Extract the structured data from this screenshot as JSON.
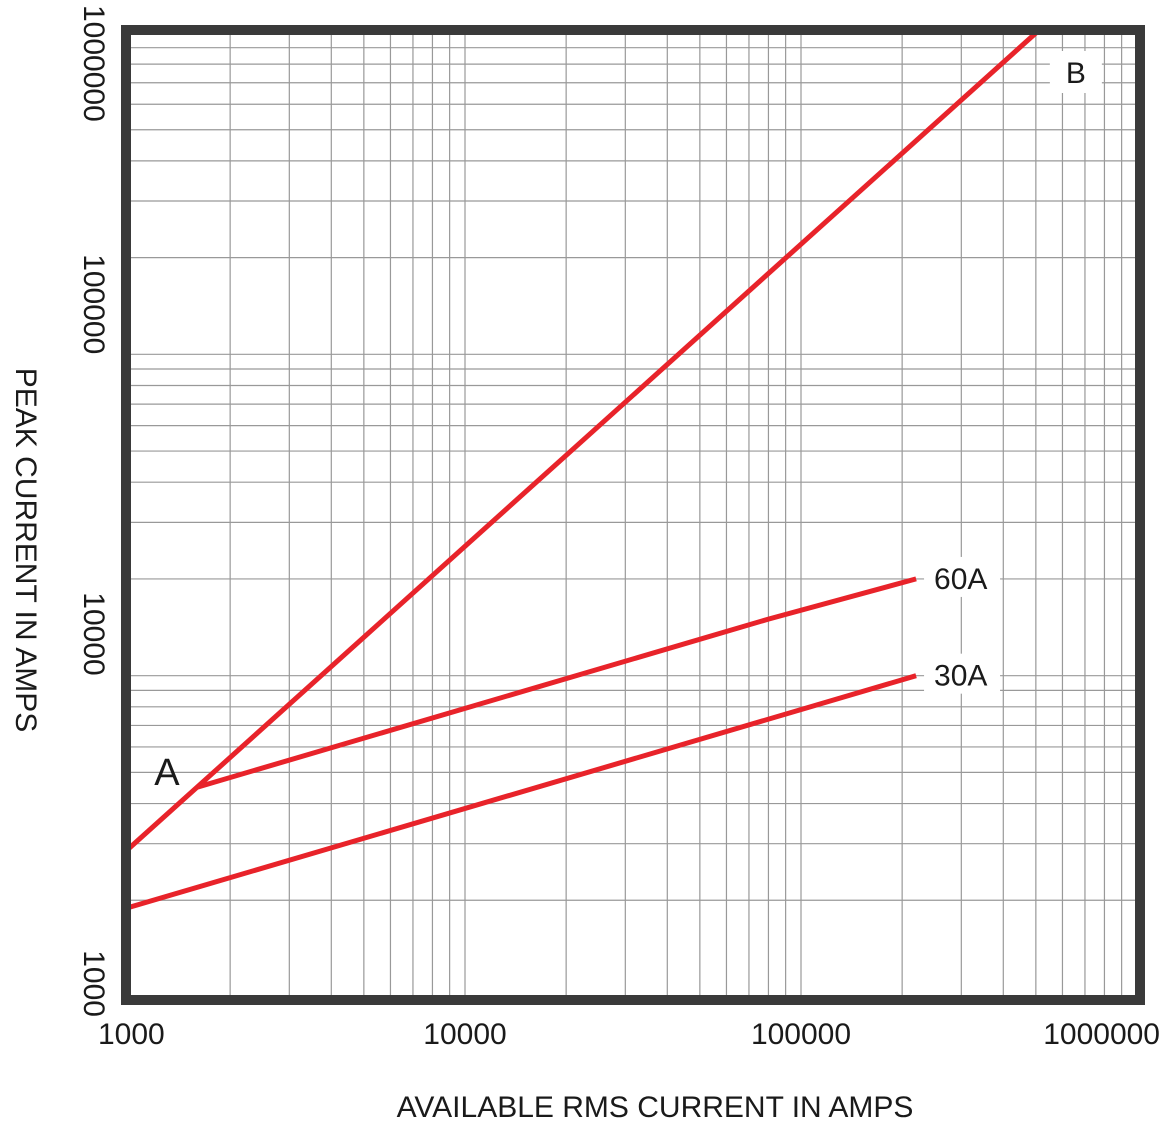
{
  "chart_data": {
    "type": "line",
    "title": "",
    "xlabel": "AVAILABLE RMS CURRENT IN AMPS",
    "ylabel": "PEAK CURRENT IN AMPS",
    "xscale": "log",
    "yscale": "log",
    "xlim": [
      1000,
      1000000
    ],
    "ylim": [
      1000,
      1000000
    ],
    "xticks": [
      "1000",
      "10000",
      "100000",
      "1000000"
    ],
    "yticks": [
      "1000",
      "10000",
      "100000",
      "1000000"
    ],
    "grid": true,
    "series": [
      {
        "name": "A-B",
        "x": [
          1000,
          500000
        ],
        "y": [
          2900,
          1000000
        ]
      },
      {
        "name": "60A",
        "x": [
          1600,
          80000,
          220000
        ],
        "y": [
          4500,
          15000,
          20000
        ]
      },
      {
        "name": "30A",
        "x": [
          1000,
          220000
        ],
        "y": [
          1900,
          10000
        ]
      }
    ],
    "annotations": [
      {
        "text": "A",
        "x": 1600,
        "y": 4500
      },
      {
        "text": "B",
        "x": 500000,
        "y": 1000000
      }
    ],
    "colors": {
      "line": "#e8232a",
      "frame": "#3a3a3a",
      "grid": "#999999"
    }
  }
}
